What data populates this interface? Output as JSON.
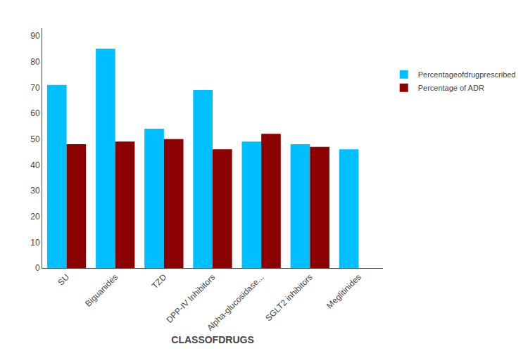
{
  "chart_data": {
    "type": "bar",
    "categories": [
      "SU",
      "Biguanides",
      "TZD",
      "DPP-IV Inhibitors",
      "Alpha-glucosidase...",
      "SGLT2 inhibitors",
      "Meglitinides"
    ],
    "series": [
      {
        "name": "Percentageofdrugprescribed",
        "color": "#00BFFF",
        "values": [
          71,
          85,
          54,
          69,
          49,
          48,
          46
        ]
      },
      {
        "name": "Percentage of ADR",
        "color": "#8B0000",
        "values": [
          48,
          49,
          50,
          46,
          52,
          47,
          0
        ]
      }
    ],
    "xlabel": "CLASSOFDRUGS",
    "ylim": [
      0,
      93
    ],
    "yticks": [
      0,
      10,
      20,
      30,
      40,
      50,
      60,
      70,
      80,
      90
    ],
    "grid": false,
    "legend": "right"
  }
}
